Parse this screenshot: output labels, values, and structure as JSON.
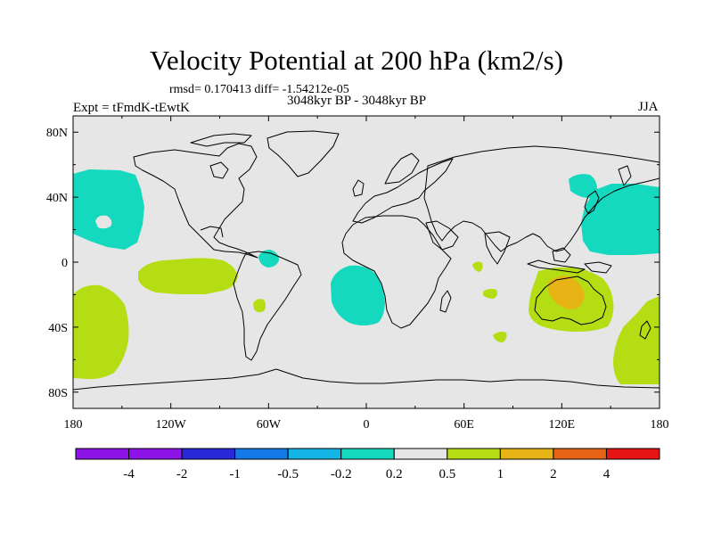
{
  "header": {
    "title": "Velocity Potential at 200 hPa (km2/s)",
    "stats": "rmsd= 0.170413 diff= -1.54212e-05",
    "experiment": "Expt = tFmdK-tEwtK",
    "period": "3048kyr BP - 3048kyr BP",
    "season": "JJA"
  },
  "map": {
    "projection": "cylindrical equidistant",
    "lon_range": [
      -180,
      180
    ],
    "lat_range": [
      -90,
      90
    ],
    "background_color": "#e6e6e6",
    "x_ticks": [
      "180",
      "120W",
      "60W",
      "0",
      "60E",
      "120E",
      "180"
    ],
    "y_ticks": [
      "80N",
      "40N",
      "0",
      "40S",
      "80S"
    ],
    "regions": [
      {
        "name": "north-pacific-negative",
        "level": "-0.5 to -0.2",
        "color": "#14d9bf"
      },
      {
        "name": "tropical-atlantic-negative",
        "level": "-0.5 to -0.2",
        "color": "#14d9bf"
      },
      {
        "name": "south-atlantic-negative",
        "level": "-0.5 to -0.2",
        "color": "#14d9bf"
      },
      {
        "name": "northwest-pacific-negative",
        "level": "-0.5 to -0.2",
        "color": "#14d9bf"
      },
      {
        "name": "east-pacific-positive",
        "level": "0.2 to 0.5",
        "color": "#b4dd14"
      },
      {
        "name": "south-pacific-positive",
        "level": "0.2 to 0.5",
        "color": "#b4dd14"
      },
      {
        "name": "australia-positive",
        "level": "0.2 to 0.5",
        "color": "#b4dd14"
      },
      {
        "name": "australia-core",
        "level": "0.5 to 1",
        "color": "#e6b414"
      },
      {
        "name": "indian-ocean-positive",
        "level": "0.2 to 0.5",
        "color": "#b4dd14"
      }
    ]
  },
  "colorbar": {
    "labels": [
      "-4",
      "-2",
      "-1",
      "-0.5",
      "-0.2",
      "0.2",
      "0.5",
      "1",
      "2",
      "4"
    ],
    "colors": [
      "#8c14e6",
      "#2828d9",
      "#1478e6",
      "#14b4e6",
      "#14d9bf",
      "#e6e6e6",
      "#b4dd14",
      "#e6b414",
      "#e66414",
      "#e61414"
    ]
  }
}
